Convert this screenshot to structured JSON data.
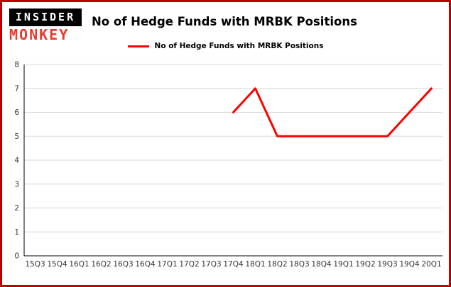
{
  "brand": {
    "line1": "INSIDER",
    "line2": "MONKEY"
  },
  "header": {
    "title": "No of Hedge Funds with MRBK Positions"
  },
  "legend": {
    "label": "No of Hedge Funds with MRBK Positions"
  },
  "colors": {
    "frame_border": "#c00000",
    "line": "#ff0000",
    "grid": "#d8d8d8",
    "axis": "#000000",
    "brand_red": "#e83a2d",
    "brand_black": "#000000"
  },
  "chart_data": {
    "type": "line",
    "title": "No of Hedge Funds with MRBK Positions",
    "xlabel": "",
    "ylabel": "",
    "ylim": [
      0,
      8
    ],
    "yticks": [
      0,
      1,
      2,
      3,
      4,
      5,
      6,
      7,
      8
    ],
    "grid": true,
    "legend_position": "top",
    "categories": [
      "15Q3",
      "15Q4",
      "16Q1",
      "16Q2",
      "16Q3",
      "16Q4",
      "17Q1",
      "17Q2",
      "17Q3",
      "17Q4",
      "18Q1",
      "18Q2",
      "18Q3",
      "18Q4",
      "19Q1",
      "19Q2",
      "19Q3",
      "19Q4",
      "20Q1"
    ],
    "series": [
      {
        "name": "No of Hedge Funds with MRBK Positions",
        "color": "#ff0000",
        "values": [
          null,
          null,
          null,
          null,
          null,
          null,
          null,
          null,
          null,
          6,
          7,
          5,
          5,
          5,
          5,
          5,
          5,
          6,
          7
        ]
      }
    ]
  }
}
